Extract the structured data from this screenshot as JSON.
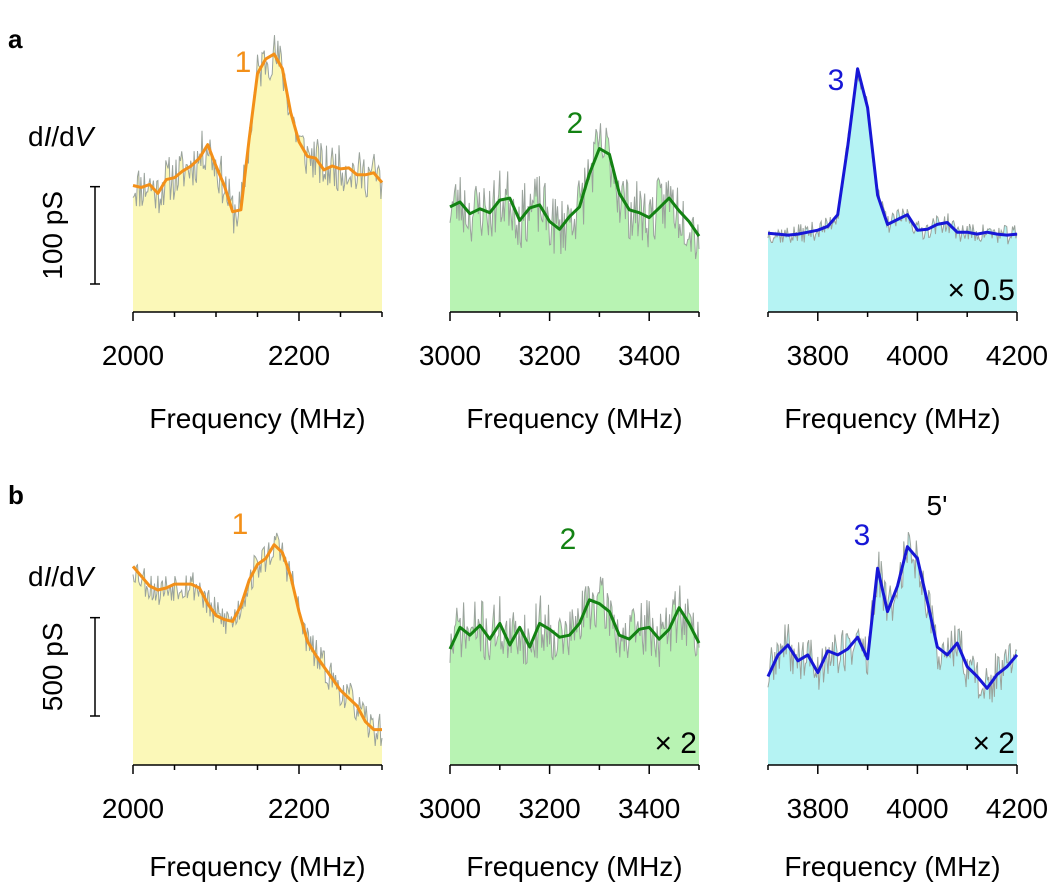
{
  "figure": {
    "panel_a_label": "a",
    "panel_b_label": "b"
  },
  "colors": {
    "orange": "#f39019",
    "green": "#138213",
    "blue": "#1717d6",
    "fill_yellow": "#fbf8b8",
    "fill_green": "#b8f3b3",
    "fill_cyan": "#b5f3f3",
    "raw_gray": "#9aa39c"
  },
  "chart_data": [
    {
      "type": "line",
      "row": "a",
      "col": 0,
      "xlabel": "Frequency (MHz)",
      "xlim": [
        2000,
        2300
      ],
      "xticks": [
        2000,
        2200
      ],
      "ylim": [
        0,
        300
      ],
      "peak_label": "1",
      "color_key": "orange",
      "fill_key": "fill_yellow",
      "scale_bar": {
        "value": 100,
        "label": "100 pS"
      },
      "ylabel": "dI/dV",
      "raw_seed": 11,
      "raw_noise": 24,
      "x": [
        2000,
        2010,
        2020,
        2030,
        2040,
        2050,
        2060,
        2070,
        2080,
        2090,
        2100,
        2110,
        2120,
        2130,
        2140,
        2150,
        2160,
        2170,
        2180,
        2190,
        2200,
        2210,
        2220,
        2230,
        2240,
        2250,
        2260,
        2270,
        2280,
        2290,
        2300
      ],
      "y": [
        130,
        128,
        131,
        122,
        136,
        138,
        145,
        150,
        158,
        172,
        150,
        130,
        103,
        105,
        178,
        245,
        260,
        265,
        250,
        205,
        175,
        160,
        158,
        146,
        150,
        147,
        148,
        141,
        141,
        143,
        133
      ]
    },
    {
      "type": "line",
      "row": "a",
      "col": 1,
      "xlabel": "Frequency (MHz)",
      "xlim": [
        3000,
        3500
      ],
      "xticks": [
        3000,
        3200,
        3400
      ],
      "ylim": [
        0,
        300
      ],
      "peak_label": "2",
      "color_key": "green",
      "fill_key": "fill_green",
      "raw_seed": 23,
      "raw_noise": 32,
      "x": [
        3000,
        3020,
        3040,
        3060,
        3080,
        3100,
        3120,
        3140,
        3160,
        3180,
        3200,
        3220,
        3240,
        3260,
        3280,
        3300,
        3320,
        3340,
        3360,
        3380,
        3400,
        3420,
        3440,
        3460,
        3480,
        3500
      ],
      "y": [
        108,
        113,
        101,
        106,
        102,
        115,
        117,
        94,
        107,
        110,
        93,
        85,
        98,
        108,
        142,
        168,
        162,
        122,
        105,
        102,
        97,
        107,
        117,
        104,
        93,
        78
      ]
    },
    {
      "type": "line",
      "row": "a",
      "col": 2,
      "xlabel": "Frequency (MHz)",
      "xlim": [
        3700,
        4200
      ],
      "xticks": [
        3800,
        4000,
        4200
      ],
      "ylim": [
        0,
        300
      ],
      "peak_label": "3",
      "color_key": "blue",
      "fill_key": "fill_cyan",
      "multiplier": "× 0.5",
      "raw_seed": 37,
      "raw_noise": 10,
      "x": [
        3700,
        3720,
        3740,
        3760,
        3780,
        3800,
        3820,
        3840,
        3860,
        3880,
        3900,
        3920,
        3940,
        3960,
        3980,
        4000,
        4020,
        4040,
        4060,
        4080,
        4100,
        4120,
        4140,
        4160,
        4180,
        4200
      ],
      "y": [
        81,
        80,
        79,
        80,
        82,
        84,
        88,
        100,
        170,
        250,
        210,
        120,
        90,
        95,
        100,
        84,
        85,
        90,
        92,
        82,
        82,
        80,
        82,
        80,
        79,
        80
      ]
    },
    {
      "type": "line",
      "row": "b",
      "col": 0,
      "xlabel": "Frequency (MHz)",
      "xlim": [
        2000,
        2300
      ],
      "xticks": [
        2000,
        2200
      ],
      "ylim": [
        0,
        1500
      ],
      "peak_label": "1",
      "color_key": "orange",
      "fill_key": "fill_yellow",
      "scale_bar": {
        "value": 500,
        "label": "500 pS"
      },
      "ylabel": "dI/dV",
      "raw_seed": 53,
      "raw_noise": 85,
      "x": [
        2000,
        2010,
        2020,
        2030,
        2040,
        2050,
        2060,
        2070,
        2080,
        2090,
        2100,
        2110,
        2120,
        2130,
        2140,
        2150,
        2160,
        2170,
        2180,
        2190,
        2200,
        2210,
        2220,
        2230,
        2240,
        2250,
        2260,
        2270,
        2280,
        2290,
        2300
      ],
      "y": [
        1010,
        960,
        910,
        890,
        900,
        920,
        920,
        920,
        900,
        820,
        760,
        740,
        730,
        810,
        940,
        1020,
        1050,
        1120,
        1080,
        960,
        780,
        630,
        560,
        500,
        440,
        380,
        340,
        300,
        220,
        180,
        180
      ]
    },
    {
      "type": "line",
      "row": "b",
      "col": 1,
      "xlabel": "Frequency (MHz)",
      "xlim": [
        3000,
        3500
      ],
      "xticks": [
        3000,
        3200,
        3400
      ],
      "ylim": [
        0,
        1500
      ],
      "peak_label": "2",
      "color_key": "green",
      "fill_key": "fill_green",
      "multiplier": "× 2",
      "raw_seed": 71,
      "raw_noise": 150,
      "x": [
        3000,
        3020,
        3040,
        3060,
        3080,
        3100,
        3120,
        3140,
        3160,
        3180,
        3200,
        3220,
        3240,
        3260,
        3280,
        3300,
        3320,
        3340,
        3360,
        3380,
        3400,
        3420,
        3440,
        3460,
        3480,
        3500
      ],
      "y": [
        590,
        700,
        660,
        710,
        640,
        720,
        610,
        700,
        600,
        720,
        690,
        650,
        660,
        720,
        840,
        820,
        780,
        660,
        640,
        690,
        700,
        640,
        690,
        800,
        720,
        620
      ]
    },
    {
      "type": "line",
      "row": "b",
      "col": 2,
      "xlabel": "Frequency (MHz)",
      "xlim": [
        3700,
        4200
      ],
      "xticks": [
        3800,
        4000,
        4200
      ],
      "ylim": [
        0,
        1500
      ],
      "peak_label": "3",
      "peak_label_2": "5'",
      "color_key": "blue",
      "fill_key": "fill_cyan",
      "multiplier": "× 2",
      "raw_seed": 89,
      "raw_noise": 120,
      "x": [
        3700,
        3720,
        3740,
        3760,
        3780,
        3800,
        3820,
        3840,
        3860,
        3880,
        3900,
        3920,
        3940,
        3960,
        3980,
        4000,
        4020,
        4040,
        4060,
        4080,
        4100,
        4120,
        4140,
        4160,
        4180,
        4200
      ],
      "y": [
        450,
        560,
        610,
        530,
        560,
        470,
        580,
        560,
        590,
        650,
        540,
        1000,
        780,
        910,
        1110,
        1050,
        830,
        600,
        560,
        620,
        500,
        450,
        390,
        460,
        500,
        560
      ]
    }
  ]
}
